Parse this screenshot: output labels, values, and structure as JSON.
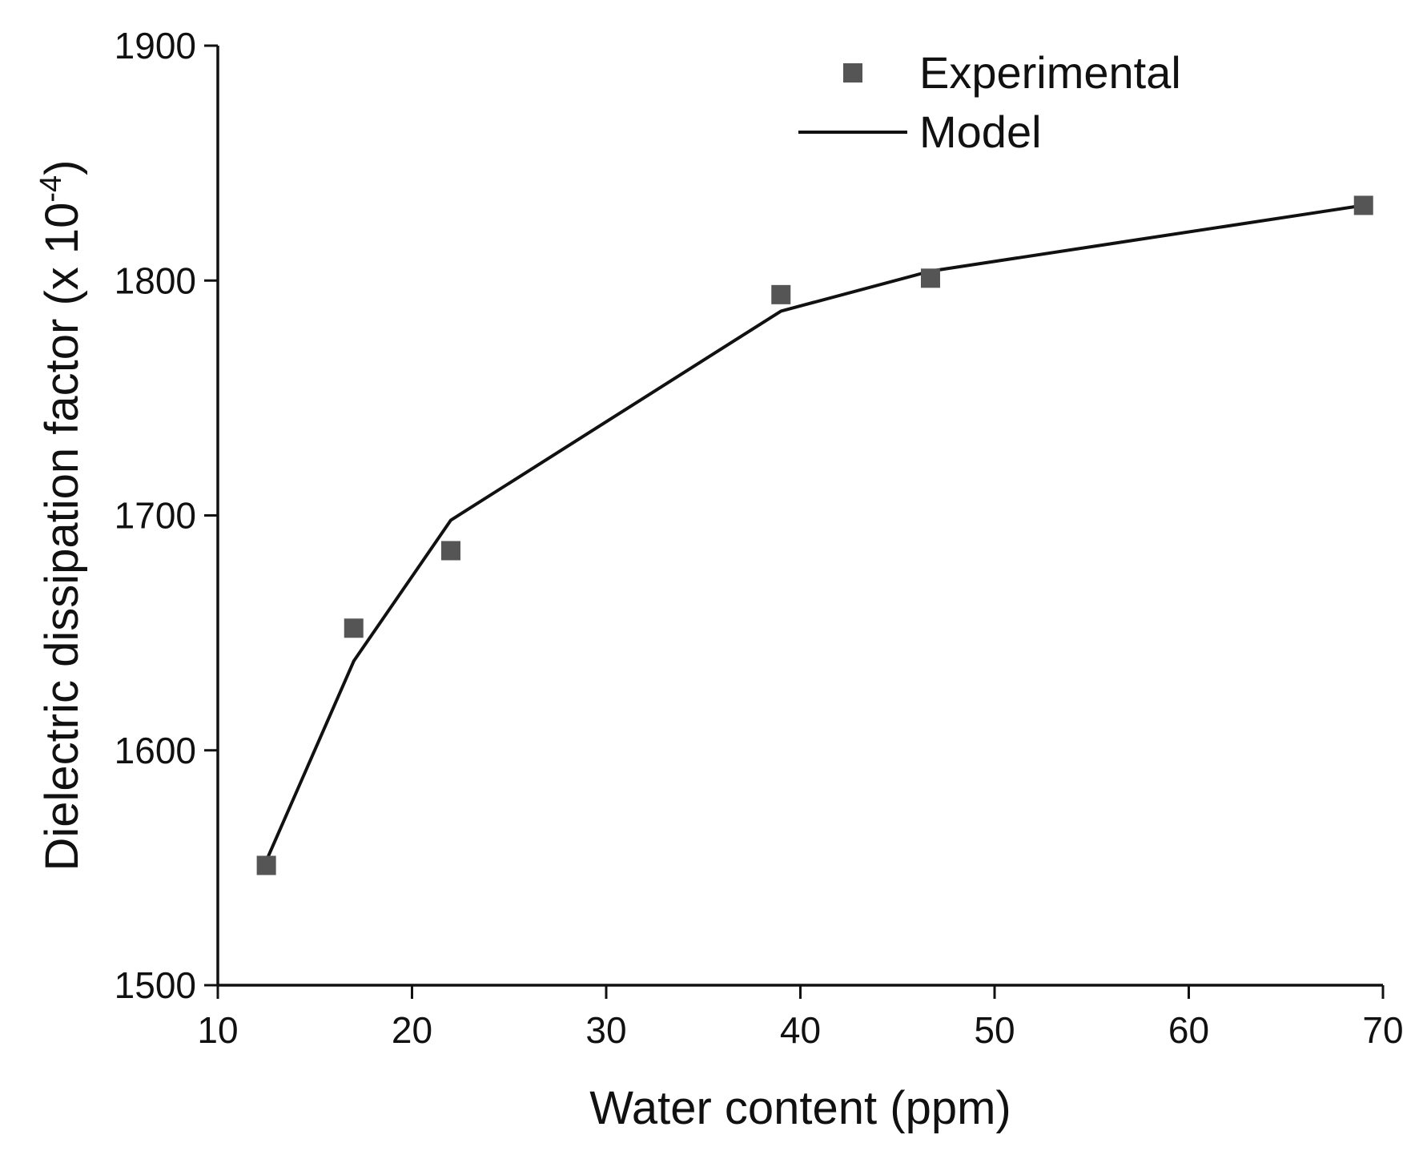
{
  "chart_data": {
    "type": "scatter",
    "title": "",
    "xlabel": "Water content (ppm)",
    "ylabel": "Dielectric dissipation factor (x 10",
    "ylabel_exp": "-4",
    "ylabel_close": ")",
    "xlim": [
      10,
      70
    ],
    "ylim": [
      1500,
      1900
    ],
    "xticks": [
      10,
      20,
      30,
      40,
      50,
      60,
      70
    ],
    "yticks": [
      1500,
      1600,
      1700,
      1800,
      1900
    ],
    "grid": false,
    "legend_position": "top-right",
    "series": [
      {
        "name": "Experimental",
        "type": "scatter",
        "marker": "square",
        "color": "#555555",
        "x": [
          12.5,
          17,
          22,
          39,
          46.7,
          69
        ],
        "y": [
          1551,
          1652,
          1685,
          1794,
          1801,
          1832
        ]
      },
      {
        "name": "Model",
        "type": "line",
        "color": "#111111",
        "x": [
          12.5,
          17,
          22,
          39,
          46.7,
          69
        ],
        "y": [
          1553,
          1638,
          1698,
          1787,
          1804,
          1832
        ]
      }
    ]
  }
}
